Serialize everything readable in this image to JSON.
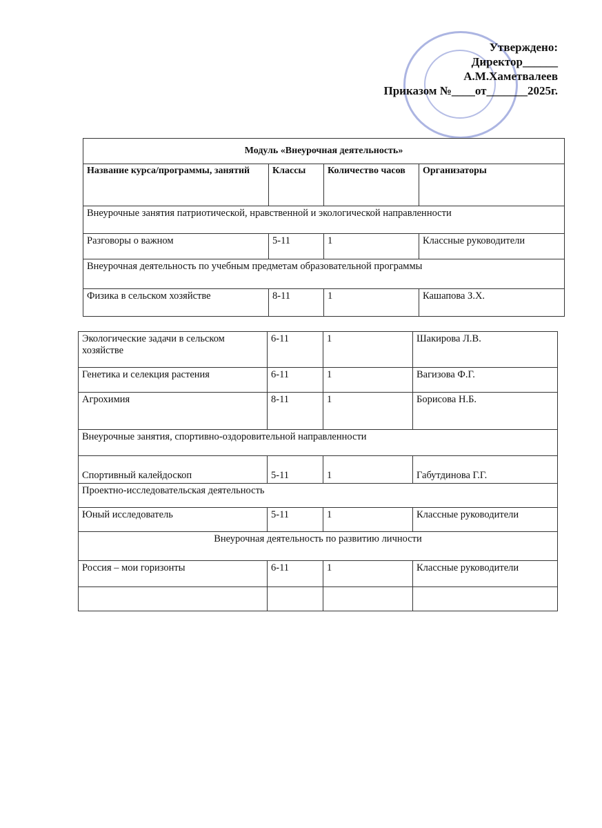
{
  "approval": {
    "lines": [
      "Утверждено:",
      "Директор______",
      "А.М.Хаметвалеев",
      "Приказом №____от_______2025г."
    ]
  },
  "table1": {
    "title": "Модуль «Внеурочная деятельность»",
    "header": [
      "Название курса/программы, занятий",
      "Классы",
      "Количество часов",
      "Организаторы"
    ],
    "rows": [
      {
        "section": "Внеурочные занятия патриотической, нравственной и экологической направленности"
      },
      {
        "cells": [
          "Разговоры о важном",
          "5-11",
          "1",
          "Классные руководители"
        ]
      },
      {
        "section": "Внеурочная деятельность по учебным предметам образовательной программы"
      },
      {
        "cells": [
          "Физика в сельском хозяйстве",
          "8-11",
          "1",
          "Кашапова З.Х."
        ]
      }
    ]
  },
  "table2": {
    "rows": [
      {
        "cells": [
          "Экологические задачи в сельском хозяйстве",
          "6-11",
          "1",
          "Шакирова Л.В."
        ]
      },
      {
        "cells": [
          "Генетика и селекция растения",
          "6-11",
          "1",
          "Вагизова Ф.Г."
        ]
      },
      {
        "cells": [
          "Агрохимия",
          "8-11",
          "1",
          "Борисова Н.Б."
        ]
      },
      {
        "section": "Внеурочные занятия, спортивно-оздоровительной направленности"
      },
      {
        "cells": [
          "Спортивный калейдоскоп",
          "5-11",
          "1",
          "Габутдинова Г.Г."
        ]
      },
      {
        "section": "Проектно-исследовательская деятельность"
      },
      {
        "cells": [
          "Юный исследователь",
          "5-11",
          "1",
          "Классные руководители"
        ]
      },
      {
        "section": "Внеурочная деятельность по развитию личности"
      },
      {
        "cells": [
          "Россия – мои горизонты",
          "6-11",
          "1",
          "Классные руководители"
        ]
      }
    ]
  }
}
